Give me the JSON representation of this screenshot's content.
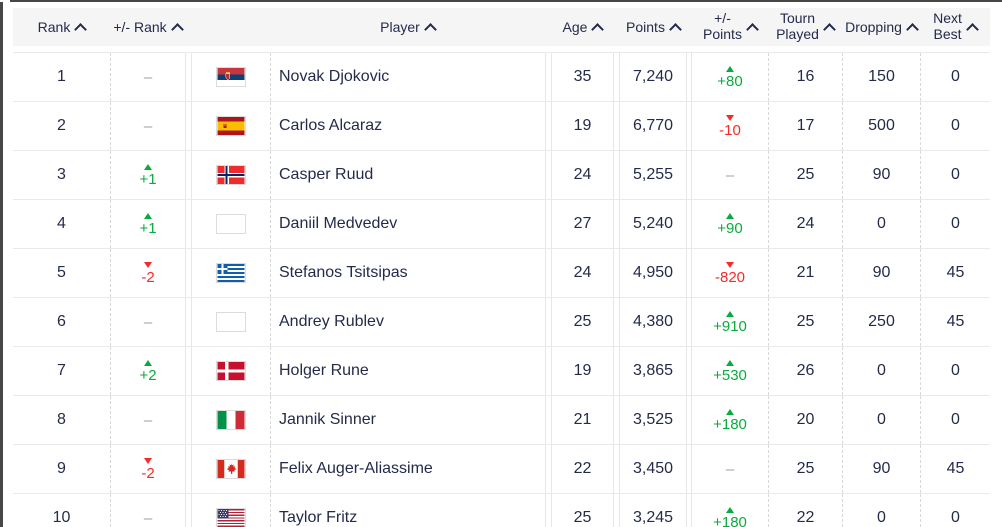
{
  "colors": {
    "accent_green": "#0aab3d",
    "accent_red": "#f52a2a",
    "text_navy": "#242b4a",
    "header_bg": "#f5f5f6",
    "muted_dash": "#9aa0a6"
  },
  "table": {
    "empty_placeholder": "–",
    "header": {
      "columns": [
        {
          "key": "rank",
          "label": "Rank",
          "sort": true
        },
        {
          "key": "rank_change",
          "label": "+/- Rank",
          "sort": true
        },
        {
          "key": "flag",
          "label": "",
          "sort": false
        },
        {
          "key": "player",
          "label": "Player",
          "sort": true
        },
        {
          "key": "age",
          "label": "Age",
          "sort": true
        },
        {
          "key": "points",
          "label": "Points",
          "sort": true
        },
        {
          "key": "points_change",
          "label": "+/- Points",
          "lines": [
            "+/-",
            "Points"
          ],
          "sort": true
        },
        {
          "key": "tourn_played",
          "label": "Tourn Played",
          "lines": [
            "Tourn",
            "Played"
          ],
          "sort": true
        },
        {
          "key": "dropping",
          "label": "Dropping",
          "sort": true
        },
        {
          "key": "next_best",
          "label": "Next Best",
          "lines": [
            "Next",
            "Best"
          ],
          "sort": true
        }
      ]
    },
    "rows": [
      {
        "rank": "1",
        "rank_change": null,
        "flag": "serbia",
        "player": "Novak Djokovic",
        "age": "35",
        "points": "7,240",
        "points_change": {
          "dir": "up",
          "value": "+80"
        },
        "tourn_played": "16",
        "dropping": "150",
        "next_best": "0"
      },
      {
        "rank": "2",
        "rank_change": null,
        "flag": "spain",
        "player": "Carlos Alcaraz",
        "age": "19",
        "points": "6,770",
        "points_change": {
          "dir": "down",
          "value": "-10"
        },
        "tourn_played": "17",
        "dropping": "500",
        "next_best": "0"
      },
      {
        "rank": "3",
        "rank_change": {
          "dir": "up",
          "value": "+1"
        },
        "flag": "norway",
        "player": "Casper Ruud",
        "age": "24",
        "points": "5,255",
        "points_change": null,
        "tourn_played": "25",
        "dropping": "90",
        "next_best": "0"
      },
      {
        "rank": "4",
        "rank_change": {
          "dir": "up",
          "value": "+1"
        },
        "flag": "neutral",
        "player": "Daniil Medvedev",
        "age": "27",
        "points": "5,240",
        "points_change": {
          "dir": "up",
          "value": "+90"
        },
        "tourn_played": "24",
        "dropping": "0",
        "next_best": "0"
      },
      {
        "rank": "5",
        "rank_change": {
          "dir": "down",
          "value": "-2"
        },
        "flag": "greece",
        "player": "Stefanos Tsitsipas",
        "age": "24",
        "points": "4,950",
        "points_change": {
          "dir": "down",
          "value": "-820"
        },
        "tourn_played": "21",
        "dropping": "90",
        "next_best": "45"
      },
      {
        "rank": "6",
        "rank_change": null,
        "flag": "neutral",
        "player": "Andrey Rublev",
        "age": "25",
        "points": "4,380",
        "points_change": {
          "dir": "up",
          "value": "+910"
        },
        "tourn_played": "25",
        "dropping": "250",
        "next_best": "45"
      },
      {
        "rank": "7",
        "rank_change": {
          "dir": "up",
          "value": "+2"
        },
        "flag": "denmark",
        "player": "Holger Rune",
        "age": "19",
        "points": "3,865",
        "points_change": {
          "dir": "up",
          "value": "+530"
        },
        "tourn_played": "26",
        "dropping": "0",
        "next_best": "0"
      },
      {
        "rank": "8",
        "rank_change": null,
        "flag": "italy",
        "player": "Jannik Sinner",
        "age": "21",
        "points": "3,525",
        "points_change": {
          "dir": "up",
          "value": "+180"
        },
        "tourn_played": "20",
        "dropping": "0",
        "next_best": "0"
      },
      {
        "rank": "9",
        "rank_change": {
          "dir": "down",
          "value": "-2"
        },
        "flag": "canada",
        "player": "Felix Auger-Aliassime",
        "age": "22",
        "points": "3,450",
        "points_change": null,
        "tourn_played": "25",
        "dropping": "90",
        "next_best": "45"
      },
      {
        "rank": "10",
        "rank_change": null,
        "flag": "usa",
        "player": "Taylor Fritz",
        "age": "25",
        "points": "3,245",
        "points_change": {
          "dir": "up",
          "value": "+180"
        },
        "tourn_played": "22",
        "dropping": "0",
        "next_best": "0"
      }
    ]
  }
}
